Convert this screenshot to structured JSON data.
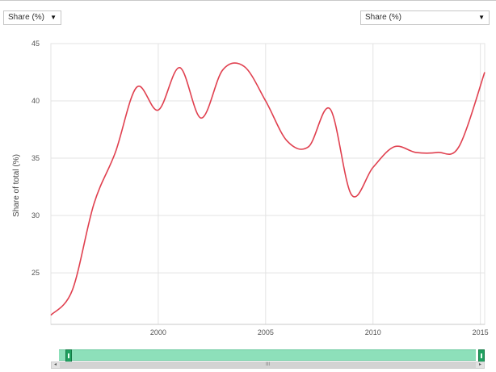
{
  "controls": {
    "left_select": {
      "label": "Share (%)"
    },
    "right_select": {
      "label": "Share (%)"
    }
  },
  "colors": {
    "line": "#e0404f",
    "grid": "#e3e3e3",
    "navigator": "#8de0ba",
    "navigator_handle": "#20a060"
  },
  "icons": {
    "dropdown": "triangle-down-icon",
    "scroll_left": "arrow-left-icon",
    "scroll_right": "arrow-right-icon"
  },
  "chart_data": {
    "type": "line",
    "title": "",
    "xlabel": "",
    "ylabel": "Share of total (%)",
    "xlim": [
      1995,
      2015.2
    ],
    "ylim": [
      20.5,
      45
    ],
    "x_ticks": [
      2000,
      2005,
      2010,
      2015
    ],
    "y_ticks": [
      25,
      30,
      35,
      40,
      45
    ],
    "grid": true,
    "legend": "none",
    "series": [
      {
        "x": [
          1995,
          1996,
          1997,
          1998,
          1999,
          2000,
          2001,
          2002,
          2003,
          2004,
          2005,
          2006,
          2007,
          2008,
          2009,
          2010,
          2011,
          2012,
          2013,
          2014,
          2015.2
        ],
        "values": [
          21.3,
          23.5,
          31.0,
          35.5,
          41.2,
          39.2,
          42.9,
          38.5,
          42.7,
          43.0,
          40.0,
          36.5,
          36.0,
          39.3,
          31.8,
          34.2,
          36.0,
          35.5,
          35.5,
          36.0,
          42.5
        ]
      }
    ]
  }
}
